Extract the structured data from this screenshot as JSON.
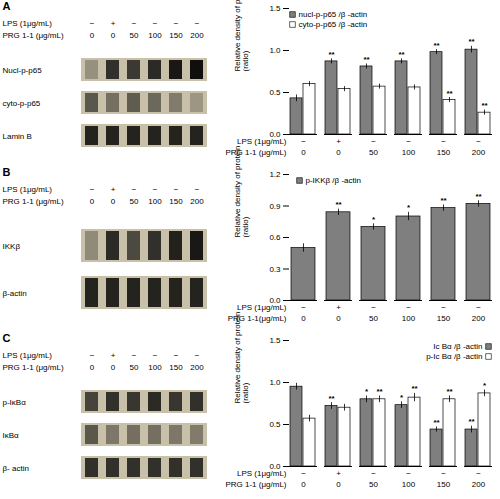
{
  "chart_data": [
    {
      "type": "heatmap",
      "title": "A",
      "category_rows": [
        {
          "name": "LPS (1μg/mL)",
          "labels": [
            "−",
            "+",
            "−",
            "−",
            "−",
            "−"
          ]
        },
        {
          "name": "PRG 1-1 (μg/mL)",
          "labels": [
            "0",
            "0",
            "50",
            "100",
            "150",
            "200"
          ]
        }
      ],
      "rows": [
        "Nucl-p-p65",
        "cyto-p-p65",
        "Lamin B"
      ],
      "cells": [
        [
          0.25,
          0.75,
          0.7,
          0.78,
          0.88,
          0.92
        ],
        [
          0.55,
          0.42,
          0.52,
          0.46,
          0.36,
          0.22
        ],
        [
          0.82,
          0.82,
          0.82,
          0.82,
          0.82,
          0.82
        ]
      ],
      "color": "#c8c0a8"
    },
    {
      "type": "bar",
      "ylabel": "Relative density of protein\n(ratio)",
      "category_rows": [
        {
          "name": "LPS (1μg/mL)",
          "labels": [
            "−",
            "+",
            "−",
            "−",
            "−",
            "−"
          ]
        },
        {
          "name": "PRG 1-1 (μg/mL)",
          "labels": [
            "0",
            "0",
            "50",
            "100",
            "150",
            "200"
          ]
        }
      ],
      "series": [
        {
          "name": "nucl-p-p65 /β -actin",
          "color": "#7f7f7f",
          "values": [
            0.43,
            0.87,
            0.81,
            0.87,
            0.98,
            1.01
          ],
          "errors": [
            0.04,
            0.03,
            0.03,
            0.03,
            0.03,
            0.04
          ],
          "significance": [
            null,
            "**",
            "**",
            "**",
            "**",
            "**"
          ]
        },
        {
          "name": "cyto-p-p65 /β -actin",
          "color": "#ffffff",
          "values": [
            0.6,
            0.54,
            0.57,
            0.56,
            0.41,
            0.26
          ],
          "errors": [
            0.03,
            0.03,
            0.03,
            0.03,
            0.03,
            0.03
          ],
          "significance": [
            null,
            null,
            null,
            null,
            "**",
            "**"
          ]
        }
      ],
      "edge_color": "#000000",
      "ylim": [
        0.0,
        1.5
      ],
      "yticks": [
        {
          "value": 0,
          "label": "0.0"
        },
        0.5,
        {
          "value": 1,
          "label": "1.0"
        },
        1.5
      ],
      "legend": "upper left"
    },
    {
      "type": "heatmap",
      "title": "B",
      "category_rows": [
        {
          "name": "LPS (1μg/mL)",
          "labels": [
            "−",
            "+",
            "−",
            "−",
            "−",
            "−"
          ]
        },
        {
          "name": "PRG 1-1 (μg/mL)",
          "labels": [
            "0",
            "0",
            "50",
            "100",
            "150",
            "200"
          ]
        }
      ],
      "rows": [
        "IKKβ",
        "β-actin"
      ],
      "cells": [
        [
          0.28,
          0.78,
          0.62,
          0.75,
          0.83,
          0.88
        ],
        [
          0.82,
          0.82,
          0.82,
          0.82,
          0.82,
          0.82
        ]
      ],
      "color": "#c8c0a8"
    },
    {
      "type": "bar",
      "ylabel": "Relative density of protein\n(ratio)",
      "category_rows": [
        {
          "name": "LPS (1μg/mL)",
          "labels": [
            "−",
            "+",
            "−",
            "−",
            "−",
            "−"
          ]
        },
        {
          "name": "PRG 1-1(μg/mL)",
          "labels": [
            "0",
            "0",
            "50",
            "100",
            "150",
            "200"
          ]
        }
      ],
      "series": [
        {
          "name": "p-IKKβ /β -actin",
          "color": "#7f7f7f",
          "values": [
            0.5,
            0.84,
            0.7,
            0.8,
            0.88,
            0.92
          ],
          "errors": [
            0.04,
            0.03,
            0.03,
            0.04,
            0.03,
            0.03
          ],
          "significance": [
            null,
            "**",
            "*",
            "*",
            "**",
            "**"
          ]
        }
      ],
      "edge_color": "#000000",
      "ylim": [
        0.0,
        1.2
      ],
      "yticks": [
        {
          "value": 0,
          "label": "0.0"
        },
        0.3,
        0.6,
        0.9,
        1.2
      ],
      "legend": "upper left"
    },
    {
      "type": "heatmap",
      "title": "C",
      "category_rows": [
        {
          "name": "LPS (1μg/mL)",
          "labels": [
            "−",
            "+",
            "−",
            "−",
            "−",
            "−"
          ]
        },
        {
          "name": "PRG 1-1 (μg/mL)",
          "labels": [
            "0",
            "0",
            "50",
            "100",
            "150",
            "200"
          ]
        }
      ],
      "rows": [
        "p-IκBα",
        "IκBα",
        "β- actin"
      ],
      "cells": [
        [
          0.65,
          0.75,
          0.72,
          0.78,
          0.72,
          0.75
        ],
        [
          0.55,
          0.38,
          0.42,
          0.42,
          0.38,
          0.36
        ],
        [
          0.75,
          0.75,
          0.75,
          0.75,
          0.75,
          0.75
        ]
      ],
      "color": "#c8c0a8"
    },
    {
      "type": "bar",
      "ylabel": "Relative density of protein\n(ratio)",
      "category_rows": [
        {
          "name": "LPS (1μg/mL)",
          "labels": [
            "−",
            "+",
            "−",
            "−",
            "−",
            "−"
          ]
        },
        {
          "name": "PRG 1-1 (μg/mL)",
          "labels": [
            "0",
            "0",
            "50",
            "100",
            "150",
            "200"
          ]
        }
      ],
      "series": [
        {
          "name": "Ic Bα /β -actin",
          "color": "#7f7f7f",
          "values": [
            0.95,
            0.72,
            0.8,
            0.73,
            0.44,
            0.44
          ],
          "errors": [
            0.04,
            0.04,
            0.04,
            0.04,
            0.03,
            0.04
          ],
          "significance": [
            null,
            "**",
            "*",
            "*",
            "**",
            "**"
          ]
        },
        {
          "name": "p-Ic Bα /β -actin",
          "color": "#ffffff",
          "values": [
            0.57,
            0.7,
            0.8,
            0.82,
            0.8,
            0.87
          ],
          "errors": [
            0.04,
            0.04,
            0.04,
            0.05,
            0.04,
            0.04
          ],
          "significance": [
            null,
            null,
            "**",
            "**",
            "**",
            "*"
          ]
        }
      ],
      "edge_color": "#000000",
      "ylim": [
        0.0,
        1.5
      ],
      "yticks": [
        {
          "value": 0,
          "label": "0.0"
        },
        0.5,
        {
          "value": 1,
          "label": "1.0"
        },
        1.5
      ],
      "legend": "upper right"
    }
  ]
}
